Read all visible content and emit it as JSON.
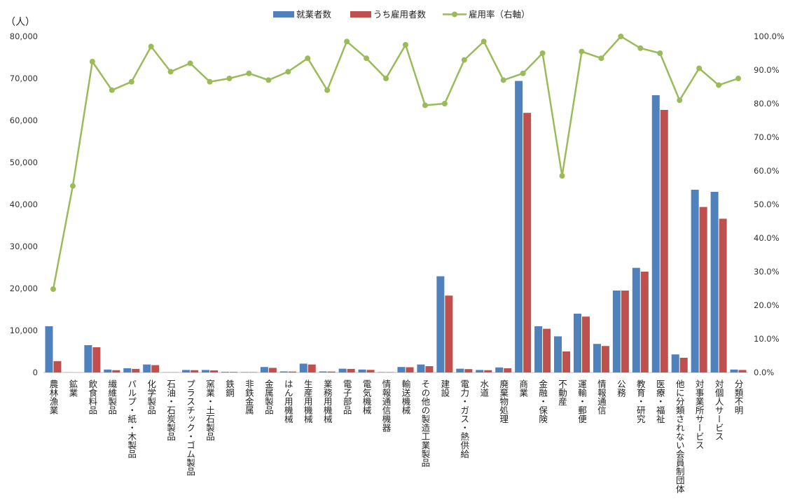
{
  "chart_data": {
    "type": "bar",
    "y_unit": "（人）",
    "categories": [
      "農林漁業",
      "鉱業",
      "飲食料品",
      "繊維製品",
      "パルプ・紙・木製品",
      "化学製品",
      "石油・石炭製品",
      "プラスチック・ゴム製品",
      "窯業・土石製品",
      "鉄鋼",
      "非鉄金属",
      "金属製品",
      "はん用機械",
      "生産用機械",
      "業務用機械",
      "電子部品",
      "電気機械",
      "情報通信機器",
      "輸送機械",
      "その他の製造工業製品",
      "建設",
      "電力・ガス・熱供給",
      "水道",
      "廃棄物処理",
      "商業",
      "金融・保険",
      "不動産",
      "運輸・郵便",
      "情報通信",
      "公務",
      "教育・研究",
      "医療・福祉",
      "他に分類されない会員制団体",
      "対事業所サービス",
      "対個人サービス",
      "分類不明"
    ],
    "series": [
      {
        "name": "就業者数",
        "type": "bar",
        "axis": "left",
        "color": "#4f81bd",
        "values": [
          11000,
          30,
          6500,
          700,
          1000,
          1900,
          50,
          600,
          600,
          150,
          100,
          1300,
          250,
          2100,
          250,
          900,
          700,
          100,
          1300,
          1900,
          22900,
          900,
          600,
          1200,
          69400,
          11000,
          8600,
          14000,
          6800,
          19500,
          24900,
          66000,
          4300,
          43500,
          43000,
          700
        ]
      },
      {
        "name": "うち雇用者数",
        "type": "bar",
        "axis": "left",
        "color": "#c0504d",
        "values": [
          2700,
          15,
          6000,
          550,
          850,
          1750,
          45,
          550,
          500,
          130,
          90,
          1100,
          220,
          1900,
          220,
          850,
          620,
          90,
          1250,
          1500,
          18300,
          800,
          550,
          1000,
          61800,
          10400,
          5000,
          13300,
          6300,
          19500,
          24000,
          62500,
          3500,
          39400,
          36600,
          600
        ]
      },
      {
        "name": "雇用率（右軸）",
        "type": "line",
        "axis": "right",
        "color": "#9bbb59",
        "values": [
          24.8,
          55.5,
          92.5,
          84.0,
          86.5,
          97.0,
          89.5,
          92.0,
          86.5,
          87.5,
          89.0,
          87.0,
          89.5,
          93.5,
          84.0,
          98.5,
          93.5,
          87.5,
          97.5,
          79.5,
          80.0,
          93.0,
          98.5,
          87.0,
          89.0,
          95.0,
          58.5,
          95.5,
          93.5,
          100.0,
          96.5,
          95.0,
          81.0,
          90.5,
          85.5,
          87.5
        ]
      }
    ],
    "y_left": {
      "min": 0,
      "max": 80000,
      "step": 10000,
      "tick_labels": [
        "0",
        "10,000",
        "20,000",
        "30,000",
        "40,000",
        "50,000",
        "60,000",
        "70,000",
        "80,000"
      ]
    },
    "y_right": {
      "min": 0,
      "max": 100,
      "step": 10,
      "tick_labels": [
        "0.0%",
        "10.0%",
        "20.0%",
        "30.0%",
        "40.0%",
        "50.0%",
        "60.0%",
        "70.0%",
        "80.0%",
        "90.0%",
        "100.0%"
      ]
    },
    "legend_position": "top-center",
    "grid": false
  }
}
